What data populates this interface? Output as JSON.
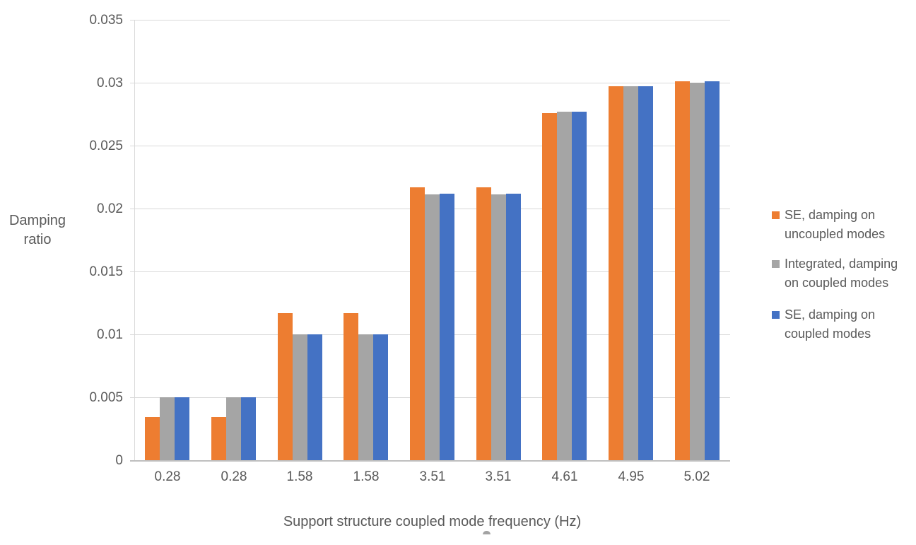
{
  "chart_data": {
    "type": "bar",
    "title": "",
    "categories": [
      "0.28",
      "0.28",
      "1.58",
      "1.58",
      "3.51",
      "3.51",
      "4.61",
      "4.95",
      "5.02"
    ],
    "series": [
      {
        "name": "SE, damping on uncoupled modes",
        "label_lines": [
          "SE, damping on",
          "uncoupled modes"
        ],
        "color": "#ED7D31",
        "values": [
          0.0034,
          0.0034,
          0.0117,
          0.0117,
          0.0217,
          0.0217,
          0.0276,
          0.0297,
          0.0301
        ]
      },
      {
        "name": "Integrated, damping on coupled modes",
        "label_lines": [
          "Integrated, damping",
          "on coupled modes"
        ],
        "color": "#A5A5A5",
        "values": [
          0.005,
          0.005,
          0.01,
          0.01,
          0.0211,
          0.0211,
          0.0277,
          0.0297,
          0.03
        ]
      },
      {
        "name": "SE, damping on coupled modes",
        "label_lines": [
          "SE, damping on",
          "coupled modes"
        ],
        "color": "#4472C4",
        "values": [
          0.005,
          0.005,
          0.01,
          0.01,
          0.0212,
          0.0212,
          0.0277,
          0.0297,
          0.0301
        ]
      }
    ],
    "xlabel": "Support structure coupled mode frequency (Hz)",
    "ylabel": "Damping ratio",
    "ylim": [
      0,
      0.035
    ],
    "ytick_step": 0.005,
    "yticks": [
      "0",
      "0.005",
      "0.01",
      "0.015",
      "0.02",
      "0.025",
      "0.03",
      "0.035"
    ],
    "grid": true,
    "legend_position": "right",
    "colors": {
      "grid": "#D9D9D9",
      "axis_line": "#BFBFBF",
      "text": "#595959",
      "background": "#FFFFFF"
    }
  }
}
